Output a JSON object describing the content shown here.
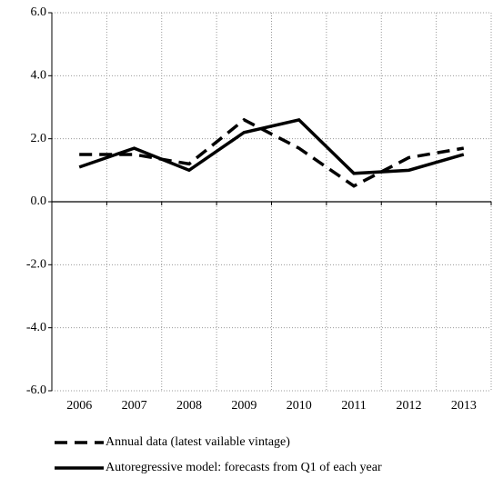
{
  "chart_data": {
    "type": "line",
    "categories": [
      "2006",
      "2007",
      "2008",
      "2009",
      "2010",
      "2011",
      "2012",
      "2013"
    ],
    "series": [
      {
        "name": "Annual data (latest vailable vintage)",
        "color": "#000000",
        "style": "dashed",
        "values": [
          1.5,
          1.5,
          1.2,
          2.6,
          1.7,
          0.5,
          1.4,
          1.7
        ]
      },
      {
        "name": "Autoregressive model: forecasts from Q1 of each year",
        "color": "#000000",
        "style": "solid",
        "values": [
          1.1,
          1.7,
          1.0,
          2.2,
          2.6,
          0.9,
          1.0,
          1.5
        ]
      }
    ],
    "ylim": [
      -6,
      6
    ],
    "yticks": [
      {
        "value": -6,
        "label": "-6.0"
      },
      {
        "value": -4,
        "label": "-4.0"
      },
      {
        "value": -2,
        "label": "-2.0"
      },
      {
        "value": 0,
        "label": "0.0"
      },
      {
        "value": 2,
        "label": "2.0"
      },
      {
        "value": 4,
        "label": "4.0"
      },
      {
        "value": 6,
        "label": "6.0"
      }
    ],
    "grid": true,
    "legend": "bottom"
  }
}
